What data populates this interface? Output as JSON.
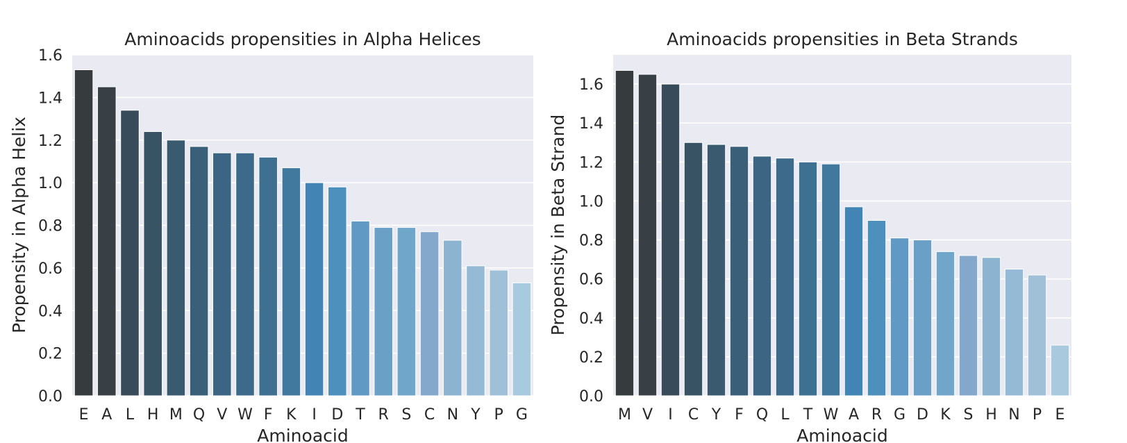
{
  "chart_data": [
    {
      "type": "bar",
      "title": "Aminoacids propensities in Alpha Helices",
      "xlabel": "Aminoacid",
      "ylabel": "Propensity in Alpha Helix",
      "categories": [
        "E",
        "A",
        "L",
        "H",
        "M",
        "Q",
        "V",
        "W",
        "F",
        "K",
        "I",
        "D",
        "T",
        "R",
        "S",
        "C",
        "N",
        "Y",
        "P",
        "G"
      ],
      "values": [
        1.53,
        1.45,
        1.34,
        1.24,
        1.2,
        1.17,
        1.14,
        1.14,
        1.12,
        1.07,
        1.0,
        0.98,
        0.82,
        0.79,
        0.79,
        0.77,
        0.73,
        0.61,
        0.59,
        0.53
      ],
      "colors": [
        "#363b3e",
        "#383f45",
        "#384b5a",
        "#375364",
        "#3a5a6f",
        "#3a6079",
        "#3b6582",
        "#3d6a8b",
        "#3e7092",
        "#41789d",
        "#4284b3",
        "#4d8fbd",
        "#6099c4",
        "#6ba0c6",
        "#70a6c9",
        "#84a8cb",
        "#8cb4d1",
        "#95bad5",
        "#a0c0d8",
        "#a9c9de"
      ],
      "ylim": [
        0,
        1.6
      ],
      "yticks": [
        "0.0",
        "0.2",
        "0.4",
        "0.6",
        "0.8",
        "1.0",
        "1.2",
        "1.4",
        "1.6"
      ],
      "grid": true
    },
    {
      "type": "bar",
      "title": "Aminoacids propensities in Beta Strands",
      "xlabel": "Aminoacid",
      "ylabel": "Propensity in Beta Strand",
      "categories": [
        "M",
        "V",
        "I",
        "C",
        "Y",
        "F",
        "Q",
        "L",
        "T",
        "W",
        "A",
        "R",
        "G",
        "D",
        "K",
        "S",
        "H",
        "N",
        "P",
        "E"
      ],
      "values": [
        1.67,
        1.65,
        1.6,
        1.3,
        1.29,
        1.28,
        1.23,
        1.22,
        1.2,
        1.19,
        0.97,
        0.9,
        0.81,
        0.8,
        0.74,
        0.72,
        0.71,
        0.65,
        0.62,
        0.26
      ],
      "colors": [
        "#363b3e",
        "#383f45",
        "#384b5a",
        "#375364",
        "#3a5a6f",
        "#3a6079",
        "#3b6582",
        "#3d6a8b",
        "#3e7092",
        "#41789d",
        "#4284b3",
        "#4d8fbd",
        "#6099c4",
        "#6ba0c6",
        "#70a6c9",
        "#84a8cb",
        "#8cb4d1",
        "#95bad5",
        "#a0c0d8",
        "#a9c9de"
      ],
      "ylim": [
        0,
        1.75
      ],
      "yticks": [
        "0.0",
        "0.2",
        "0.4",
        "0.6",
        "0.8",
        "1.0",
        "1.2",
        "1.4",
        "1.6"
      ],
      "grid": true
    }
  ],
  "style": {
    "plot_background": "#eaeaf2",
    "gridline": "#ffffff",
    "text": "#262626"
  }
}
